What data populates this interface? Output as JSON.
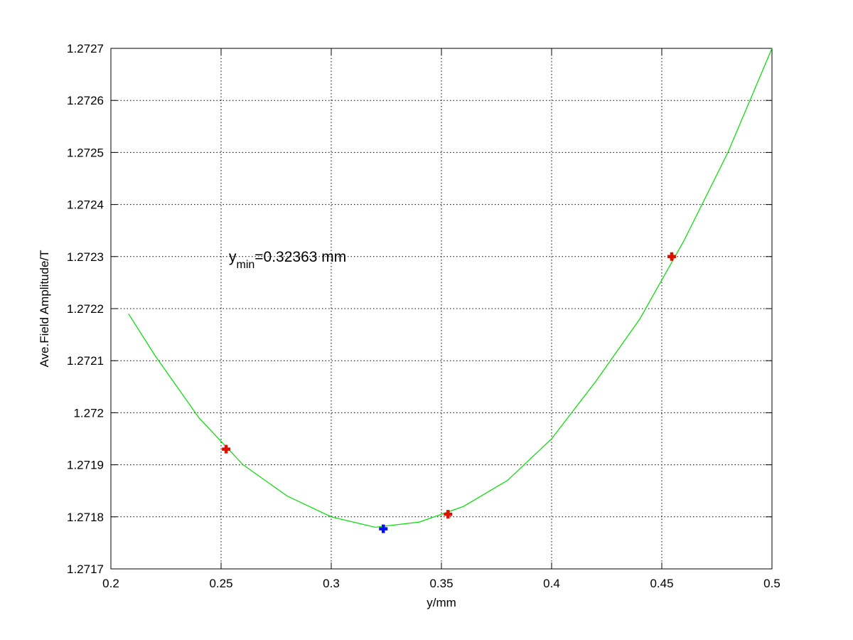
{
  "chart_data": {
    "type": "line",
    "xlabel": "y/mm",
    "ylabel": "Ave.Field Amplitude/T",
    "annotation": {
      "base": "y",
      "sub": "min",
      "rest": "=0.32363 mm"
    },
    "xlim": [
      0.2,
      0.5
    ],
    "xticks": [
      0.2,
      0.25,
      0.3,
      0.35,
      0.4,
      0.45,
      0.5
    ],
    "ylim": [
      1.2717,
      1.2727
    ],
    "yticks": [
      1.2717,
      1.2718,
      1.2719,
      1.272,
      1.2721,
      1.2722,
      1.2723,
      1.2724,
      1.2725,
      1.2726,
      1.2727
    ],
    "grid": true,
    "series": [
      {
        "style": "line",
        "color": "#00dd00",
        "x": [
          0.208,
          0.22,
          0.24,
          0.26,
          0.28,
          0.3,
          0.32,
          0.34,
          0.36,
          0.38,
          0.4,
          0.42,
          0.44,
          0.46,
          0.48,
          0.5
        ],
        "values": [
          1.27219,
          1.27211,
          1.27199,
          1.2719,
          1.27184,
          1.2718,
          1.27178,
          1.27179,
          1.27182,
          1.27187,
          1.27195,
          1.27206,
          1.27218,
          1.27233,
          1.2725,
          1.2727
        ]
      },
      {
        "style": "marker",
        "color": "#dd1100",
        "x": [
          0.2523,
          0.353,
          0.4545
        ],
        "values": [
          1.27193,
          1.271805,
          1.2723
        ]
      },
      {
        "style": "marker",
        "color": "#0011ee",
        "x": [
          0.32363
        ],
        "values": [
          1.271777
        ]
      }
    ]
  }
}
